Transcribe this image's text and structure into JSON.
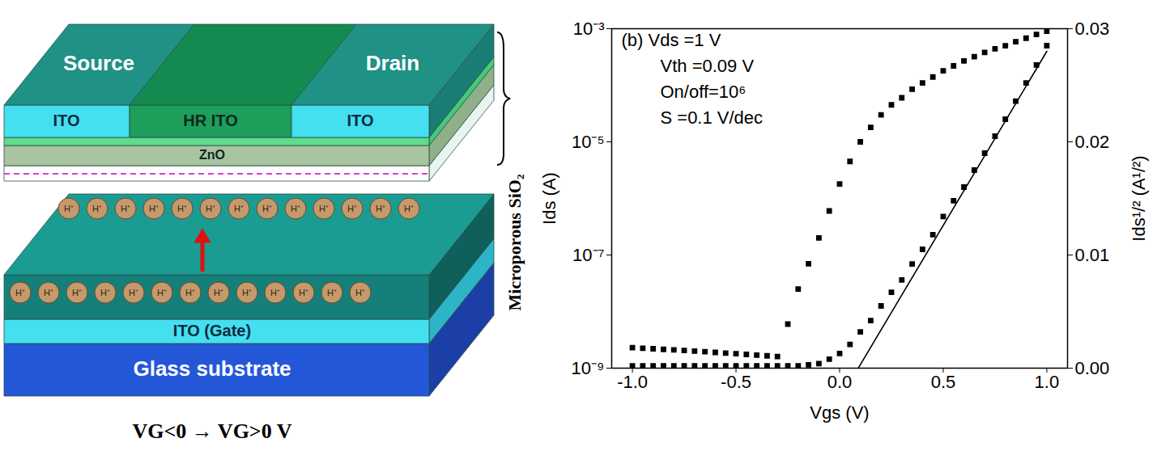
{
  "diagram": {
    "labels": {
      "source": "Source",
      "drain": "Drain",
      "ito_left": "ITO",
      "hr_ito": "HR ITO",
      "ito_right": "ITO",
      "zno": "ZnO",
      "gate": "ITO (Gate)",
      "substrate": "Glass substrate",
      "dielectric": "Microporous SiO₂",
      "ion": "H⁺",
      "bias": "VG<0 → VG>0 V"
    },
    "ion_rows": 2,
    "ions_per_row": 13
  },
  "chart_data": {
    "type": "line",
    "annotations": [
      "(b) Vds =1 V",
      "Vth =0.09 V",
      "On/off=10⁶",
      "S =0.1 V/dec"
    ],
    "x_label": "Vgs (V)",
    "y_label": "Ids (A)",
    "y2_label": "Ids¹/² (A¹/²)",
    "log": "y",
    "xlim": [
      -1.1,
      1.1
    ],
    "xticks": [
      {
        "value": -1,
        "label": "-1.0"
      },
      {
        "value": -0.5,
        "label": "-0.5"
      },
      {
        "value": 0,
        "label": "0.0"
      },
      {
        "value": 0.5,
        "label": "0.5"
      },
      {
        "value": 1,
        "label": "1.0"
      }
    ],
    "ylim": [
      1e-09,
      0.001
    ],
    "yticks": [
      {
        "value": 1e-09,
        "label": "10⁻⁹"
      },
      {
        "value": 1e-07,
        "label": "10⁻⁷"
      },
      {
        "value": 1e-05,
        "label": "10⁻⁵"
      },
      {
        "value": 0.001,
        "label": "10⁻³"
      }
    ],
    "y2lim": [
      0,
      0.03
    ],
    "y2ticks": [
      {
        "value": 0,
        "label": "0.00"
      },
      0.01,
      0.02,
      0.03
    ],
    "series": [
      {
        "axis": "y",
        "type": "scatter",
        "marker": "square",
        "color": "#000000",
        "x": [
          -1,
          -0.95,
          -0.9,
          -0.85,
          -0.8,
          -0.75,
          -0.7,
          -0.65,
          -0.6,
          -0.55,
          -0.5,
          -0.45,
          -0.4,
          -0.35,
          -0.3,
          -0.25,
          -0.2,
          -0.15,
          -0.1,
          -0.05,
          0,
          0.05,
          0.1,
          0.15,
          0.2,
          0.25,
          0.3,
          0.35,
          0.4,
          0.45,
          0.5,
          0.55,
          0.6,
          0.65,
          0.7,
          0.75,
          0.8,
          0.85,
          0.9,
          0.95,
          1
        ],
        "values": [
          2.3e-09,
          2.25e-09,
          2.2e-09,
          2.15e-09,
          2.1e-09,
          2.05e-09,
          2e-09,
          1.95e-09,
          1.9e-09,
          1.85e-09,
          1.8e-09,
          1.75e-09,
          1.7e-09,
          1.65e-09,
          1.6e-09,
          6e-09,
          2.5e-08,
          7e-08,
          2e-07,
          6e-07,
          1.8e-06,
          4.5e-06,
          1e-05,
          1.8e-05,
          3e-05,
          4.5e-05,
          6e-05,
          8.5e-05,
          0.00011,
          0.00014,
          0.00018,
          0.00022,
          0.00027,
          0.00032,
          0.00038,
          0.00044,
          0.0005,
          0.00059,
          0.00068,
          0.00079,
          0.0009
        ]
      },
      {
        "axis": "y2",
        "type": "scatter",
        "marker": "square",
        "color": "#000000",
        "x": [
          -1,
          -0.95,
          -0.9,
          -0.85,
          -0.8,
          -0.75,
          -0.7,
          -0.65,
          -0.6,
          -0.55,
          -0.5,
          -0.45,
          -0.4,
          -0.35,
          -0.3,
          -0.25,
          -0.2,
          -0.15,
          -0.1,
          -0.05,
          0,
          0.05,
          0.1,
          0.15,
          0.2,
          0.25,
          0.3,
          0.35,
          0.4,
          0.45,
          0.5,
          0.55,
          0.6,
          0.65,
          0.7,
          0.75,
          0.8,
          0.85,
          0.9,
          0.95,
          1
        ],
        "values": [
          0.0002,
          0.0002,
          0.0002,
          0.0002,
          0.0002,
          0.0002,
          0.0002,
          0.0002,
          0.0002,
          0.0002,
          0.0002,
          0.0002,
          0.0002,
          0.0002,
          0.0002,
          0.0002,
          0.0002,
          0.0003,
          0.0004,
          0.0008,
          0.0013,
          0.0021,
          0.0032,
          0.0042,
          0.0055,
          0.0067,
          0.0078,
          0.0092,
          0.0105,
          0.0118,
          0.0134,
          0.0148,
          0.016,
          0.0175,
          0.019,
          0.0205,
          0.022,
          0.0236,
          0.0252,
          0.0268,
          0.0285
        ]
      },
      {
        "axis": "y2",
        "type": "line",
        "line_style": "solid",
        "color": "#000000",
        "x": [
          0.09,
          1.0
        ],
        "values": [
          0,
          0.028
        ]
      }
    ]
  }
}
